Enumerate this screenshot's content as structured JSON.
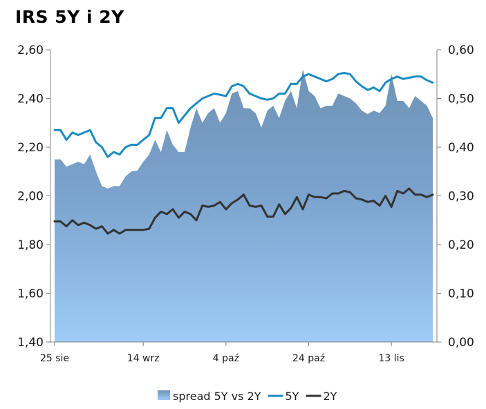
{
  "chart_data": {
    "type": "area+line",
    "title": "IRS 5Y i 2Y",
    "left_axis": {
      "ylim": [
        1.4,
        2.6
      ],
      "ticks": [
        "1,40",
        "1,60",
        "1,80",
        "2,00",
        "2,20",
        "2,40",
        "2,60"
      ]
    },
    "right_axis": {
      "ylim": [
        0.0,
        0.6
      ],
      "ticks": [
        "0,00",
        "0,10",
        "0,20",
        "0,30",
        "0,40",
        "0,50",
        "0,60"
      ]
    },
    "x_tick_labels": [
      {
        "label": "25 sie",
        "index": 0
      },
      {
        "label": "14 wrz",
        "index": 15
      },
      {
        "label": "4 paź",
        "index": 29
      },
      {
        "label": "24 paź",
        "index": 43
      },
      {
        "label": "13 lis",
        "index": 57
      }
    ],
    "legend_position": "bottom",
    "series": [
      {
        "name": "spread 5Y vs 2Y",
        "type": "area",
        "axis": "right",
        "color": "#7aa0c6",
        "values": [
          0.375,
          0.375,
          0.36,
          0.365,
          0.37,
          0.365,
          0.385,
          0.35,
          0.32,
          0.315,
          0.32,
          0.32,
          0.34,
          0.35,
          0.352,
          0.37,
          0.385,
          0.415,
          0.39,
          0.435,
          0.405,
          0.39,
          0.39,
          0.44,
          0.48,
          0.45,
          0.47,
          0.48,
          0.45,
          0.47,
          0.51,
          0.515,
          0.48,
          0.48,
          0.47,
          0.44,
          0.475,
          0.485,
          0.46,
          0.495,
          0.515,
          0.48,
          0.56,
          0.515,
          0.505,
          0.48,
          0.485,
          0.485,
          0.51,
          0.505,
          0.5,
          0.49,
          0.475,
          0.468,
          0.475,
          0.47,
          0.485,
          0.55,
          0.495,
          0.495,
          0.48,
          0.505,
          0.495,
          0.485,
          0.46
        ]
      },
      {
        "name": "5Y",
        "type": "line",
        "axis": "left",
        "color": "#1b8bc2",
        "values": [
          2.27,
          2.27,
          2.23,
          2.26,
          2.25,
          2.26,
          2.27,
          2.22,
          2.2,
          2.16,
          2.18,
          2.17,
          2.2,
          2.21,
          2.21,
          2.23,
          2.25,
          2.32,
          2.32,
          2.36,
          2.36,
          2.3,
          2.33,
          2.36,
          2.38,
          2.4,
          2.41,
          2.42,
          2.415,
          2.41,
          2.45,
          2.46,
          2.45,
          2.42,
          2.41,
          2.4,
          2.395,
          2.4,
          2.42,
          2.42,
          2.46,
          2.46,
          2.49,
          2.5,
          2.49,
          2.48,
          2.47,
          2.48,
          2.5,
          2.505,
          2.5,
          2.47,
          2.45,
          2.435,
          2.445,
          2.43,
          2.465,
          2.48,
          2.49,
          2.48,
          2.485,
          2.49,
          2.49,
          2.475,
          2.465
        ]
      },
      {
        "name": "2Y",
        "type": "line",
        "axis": "left",
        "color": "#333333",
        "values": [
          1.895,
          1.895,
          1.875,
          1.9,
          1.88,
          1.89,
          1.88,
          1.865,
          1.875,
          1.845,
          1.86,
          1.845,
          1.86,
          1.86,
          1.86,
          1.86,
          1.865,
          1.91,
          1.935,
          1.925,
          1.945,
          1.91,
          1.935,
          1.925,
          1.9,
          1.96,
          1.955,
          1.96,
          1.975,
          1.945,
          1.97,
          1.985,
          2.005,
          1.96,
          1.955,
          1.96,
          1.915,
          1.915,
          1.965,
          1.925,
          1.95,
          1.995,
          1.945,
          2.005,
          1.995,
          1.995,
          1.99,
          2.01,
          2.01,
          2.02,
          2.015,
          1.99,
          1.985,
          1.975,
          1.98,
          1.96,
          2.0,
          1.955,
          2.02,
          2.01,
          2.03,
          2.005,
          2.005,
          1.995,
          2.005
        ]
      }
    ]
  }
}
